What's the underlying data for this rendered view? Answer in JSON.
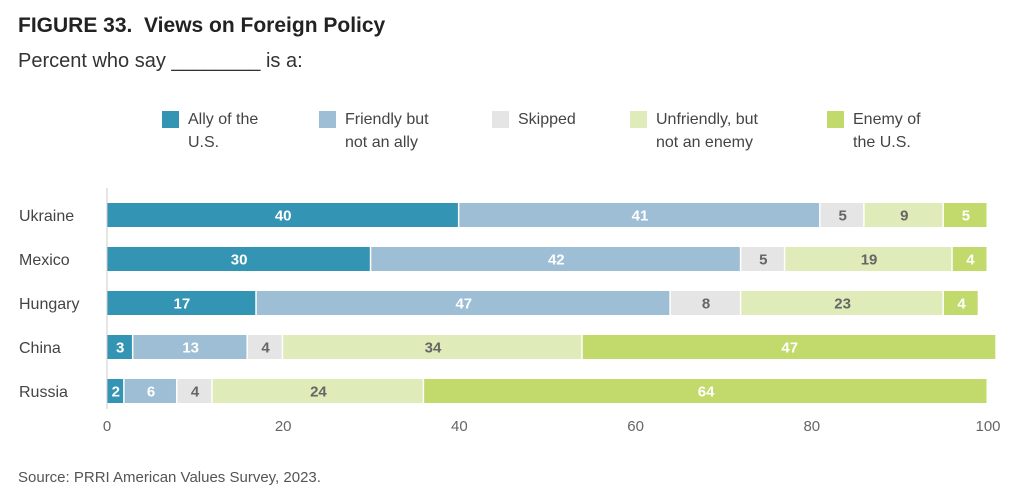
{
  "figure_label": "FIGURE 33.",
  "title": "Views on Foreign Policy",
  "subtitle": "Percent who say ________ is a:",
  "source": "Source: PRRI American Values Survey, 2023.",
  "legend": [
    {
      "label": "Ally of the\nU.S.",
      "color": "#3494b4"
    },
    {
      "label": "Friendly but\nnot an ally",
      "color": "#9dbed4"
    },
    {
      "label": "Skipped",
      "color": "#e5e5e5"
    },
    {
      "label": "Unfriendly, but\nnot an enemy",
      "color": "#dfebb8"
    },
    {
      "label": "Enemy of\nthe U.S.",
      "color": "#c2d96c"
    }
  ],
  "chart_data": {
    "type": "bar",
    "orientation": "horizontal",
    "stacked": true,
    "categories": [
      "Ukraine",
      "Mexico",
      "Hungary",
      "China",
      "Russia"
    ],
    "series": [
      {
        "name": "Ally of the U.S.",
        "values": [
          40,
          30,
          17,
          3,
          2
        ],
        "color": "#3494b4",
        "label_color": "#ffffff"
      },
      {
        "name": "Friendly but not an ally",
        "values": [
          41,
          42,
          47,
          13,
          6
        ],
        "color": "#9dbed4",
        "label_color": "#ffffff"
      },
      {
        "name": "Skipped",
        "values": [
          5,
          5,
          8,
          4,
          4
        ],
        "color": "#e5e5e5",
        "label_color": "#666666"
      },
      {
        "name": "Unfriendly, but not an enemy",
        "values": [
          9,
          19,
          23,
          34,
          24
        ],
        "color": "#dfebb8",
        "label_color": "#666666"
      },
      {
        "name": "Enemy of the U.S.",
        "values": [
          5,
          4,
          4,
          47,
          64
        ],
        "color": "#c2d96c",
        "label_color": "#ffffff"
      }
    ],
    "xlim": [
      0,
      100
    ],
    "xticks": [
      0,
      20,
      40,
      60,
      80,
      100
    ],
    "legend_position": "top",
    "grid": false
  }
}
